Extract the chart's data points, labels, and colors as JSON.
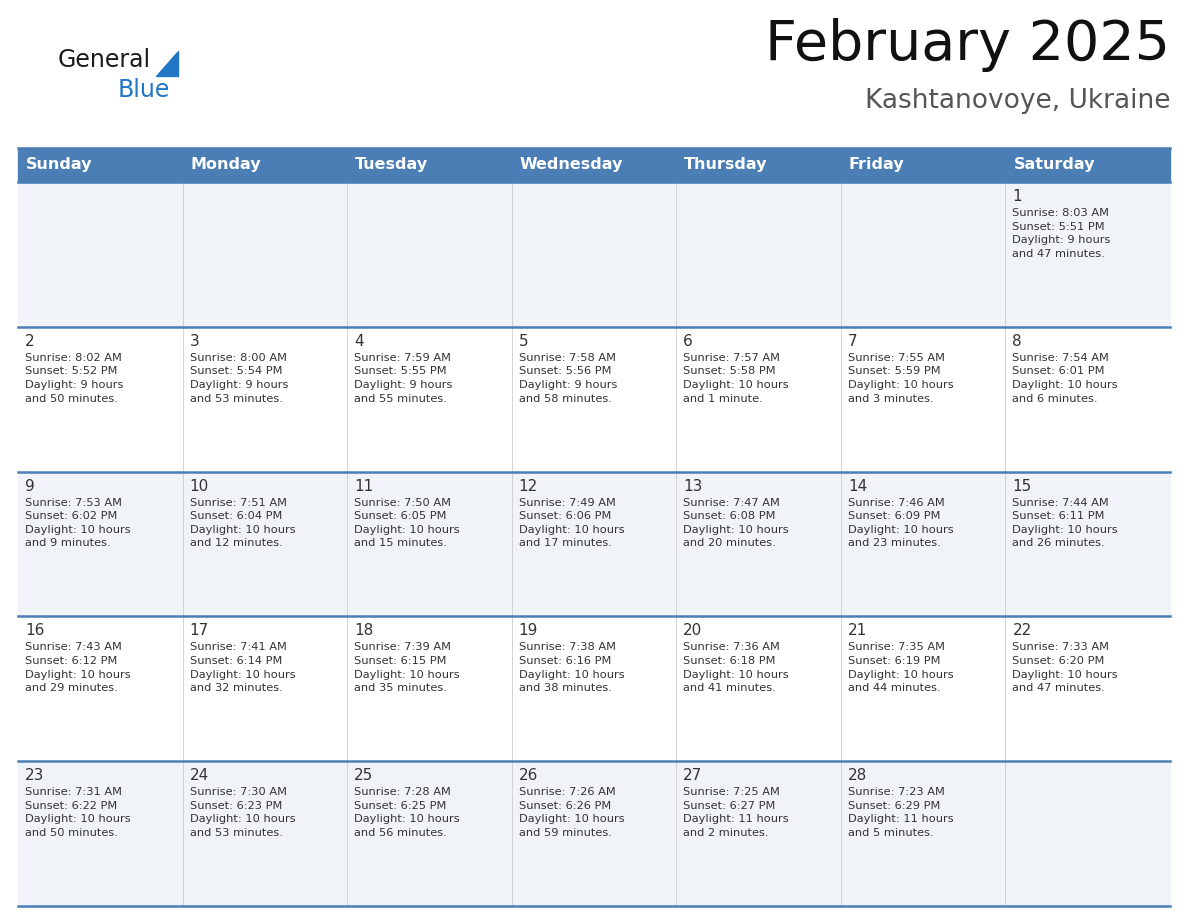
{
  "title": "February 2025",
  "subtitle": "Kashtanovoye, Ukraine",
  "header_bg_color": "#4a7eb5",
  "header_text_color": "#ffffff",
  "cell_bg_color_light": "#f0f4f8",
  "cell_bg_color_white": "#ffffff",
  "grid_line_color": "#4a7eb5",
  "text_color": "#333333",
  "days_of_week": [
    "Sunday",
    "Monday",
    "Tuesday",
    "Wednesday",
    "Thursday",
    "Friday",
    "Saturday"
  ],
  "calendar_data": [
    [
      {
        "day": "",
        "info": ""
      },
      {
        "day": "",
        "info": ""
      },
      {
        "day": "",
        "info": ""
      },
      {
        "day": "",
        "info": ""
      },
      {
        "day": "",
        "info": ""
      },
      {
        "day": "",
        "info": ""
      },
      {
        "day": "1",
        "info": "Sunrise: 8:03 AM\nSunset: 5:51 PM\nDaylight: 9 hours\nand 47 minutes."
      }
    ],
    [
      {
        "day": "2",
        "info": "Sunrise: 8:02 AM\nSunset: 5:52 PM\nDaylight: 9 hours\nand 50 minutes."
      },
      {
        "day": "3",
        "info": "Sunrise: 8:00 AM\nSunset: 5:54 PM\nDaylight: 9 hours\nand 53 minutes."
      },
      {
        "day": "4",
        "info": "Sunrise: 7:59 AM\nSunset: 5:55 PM\nDaylight: 9 hours\nand 55 minutes."
      },
      {
        "day": "5",
        "info": "Sunrise: 7:58 AM\nSunset: 5:56 PM\nDaylight: 9 hours\nand 58 minutes."
      },
      {
        "day": "6",
        "info": "Sunrise: 7:57 AM\nSunset: 5:58 PM\nDaylight: 10 hours\nand 1 minute."
      },
      {
        "day": "7",
        "info": "Sunrise: 7:55 AM\nSunset: 5:59 PM\nDaylight: 10 hours\nand 3 minutes."
      },
      {
        "day": "8",
        "info": "Sunrise: 7:54 AM\nSunset: 6:01 PM\nDaylight: 10 hours\nand 6 minutes."
      }
    ],
    [
      {
        "day": "9",
        "info": "Sunrise: 7:53 AM\nSunset: 6:02 PM\nDaylight: 10 hours\nand 9 minutes."
      },
      {
        "day": "10",
        "info": "Sunrise: 7:51 AM\nSunset: 6:04 PM\nDaylight: 10 hours\nand 12 minutes."
      },
      {
        "day": "11",
        "info": "Sunrise: 7:50 AM\nSunset: 6:05 PM\nDaylight: 10 hours\nand 15 minutes."
      },
      {
        "day": "12",
        "info": "Sunrise: 7:49 AM\nSunset: 6:06 PM\nDaylight: 10 hours\nand 17 minutes."
      },
      {
        "day": "13",
        "info": "Sunrise: 7:47 AM\nSunset: 6:08 PM\nDaylight: 10 hours\nand 20 minutes."
      },
      {
        "day": "14",
        "info": "Sunrise: 7:46 AM\nSunset: 6:09 PM\nDaylight: 10 hours\nand 23 minutes."
      },
      {
        "day": "15",
        "info": "Sunrise: 7:44 AM\nSunset: 6:11 PM\nDaylight: 10 hours\nand 26 minutes."
      }
    ],
    [
      {
        "day": "16",
        "info": "Sunrise: 7:43 AM\nSunset: 6:12 PM\nDaylight: 10 hours\nand 29 minutes."
      },
      {
        "day": "17",
        "info": "Sunrise: 7:41 AM\nSunset: 6:14 PM\nDaylight: 10 hours\nand 32 minutes."
      },
      {
        "day": "18",
        "info": "Sunrise: 7:39 AM\nSunset: 6:15 PM\nDaylight: 10 hours\nand 35 minutes."
      },
      {
        "day": "19",
        "info": "Sunrise: 7:38 AM\nSunset: 6:16 PM\nDaylight: 10 hours\nand 38 minutes."
      },
      {
        "day": "20",
        "info": "Sunrise: 7:36 AM\nSunset: 6:18 PM\nDaylight: 10 hours\nand 41 minutes."
      },
      {
        "day": "21",
        "info": "Sunrise: 7:35 AM\nSunset: 6:19 PM\nDaylight: 10 hours\nand 44 minutes."
      },
      {
        "day": "22",
        "info": "Sunrise: 7:33 AM\nSunset: 6:20 PM\nDaylight: 10 hours\nand 47 minutes."
      }
    ],
    [
      {
        "day": "23",
        "info": "Sunrise: 7:31 AM\nSunset: 6:22 PM\nDaylight: 10 hours\nand 50 minutes."
      },
      {
        "day": "24",
        "info": "Sunrise: 7:30 AM\nSunset: 6:23 PM\nDaylight: 10 hours\nand 53 minutes."
      },
      {
        "day": "25",
        "info": "Sunrise: 7:28 AM\nSunset: 6:25 PM\nDaylight: 10 hours\nand 56 minutes."
      },
      {
        "day": "26",
        "info": "Sunrise: 7:26 AM\nSunset: 6:26 PM\nDaylight: 10 hours\nand 59 minutes."
      },
      {
        "day": "27",
        "info": "Sunrise: 7:25 AM\nSunset: 6:27 PM\nDaylight: 11 hours\nand 2 minutes."
      },
      {
        "day": "28",
        "info": "Sunrise: 7:23 AM\nSunset: 6:29 PM\nDaylight: 11 hours\nand 5 minutes."
      },
      {
        "day": "",
        "info": ""
      }
    ]
  ],
  "logo_color_general": "#1a1a1a",
  "logo_color_blue": "#2176c7",
  "logo_triangle_color": "#2176c7",
  "fig_width": 11.88,
  "fig_height": 9.18,
  "dpi": 100
}
